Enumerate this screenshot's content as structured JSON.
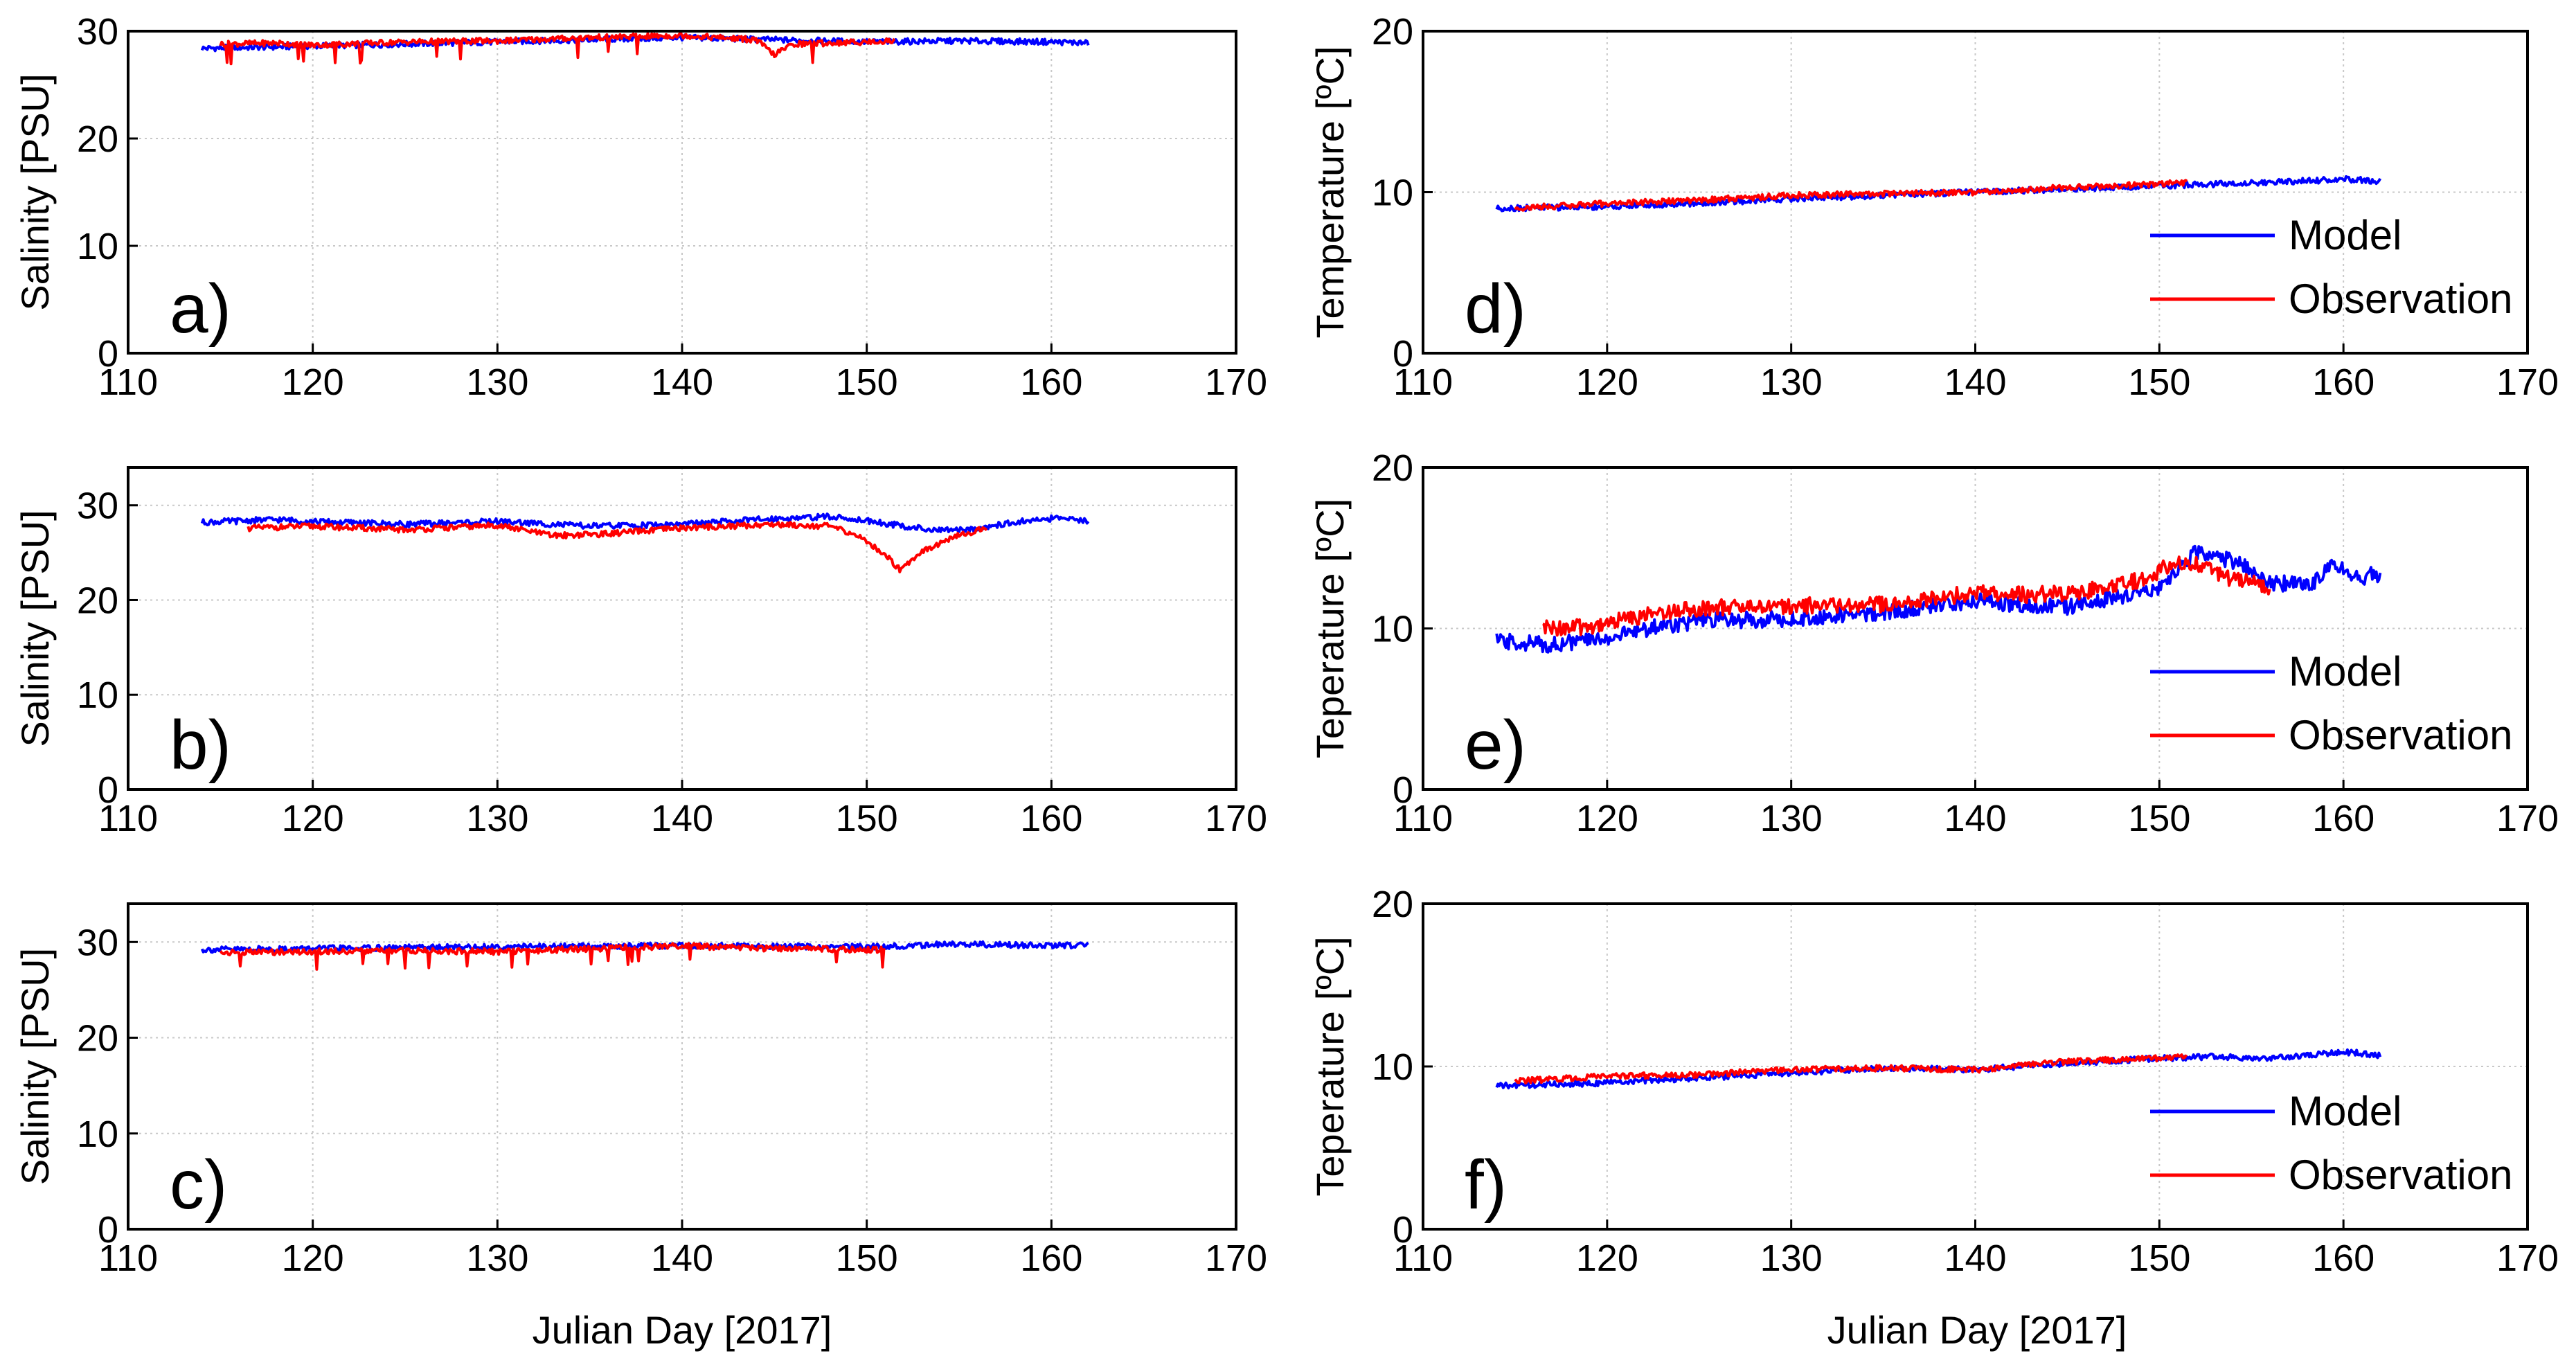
{
  "figure": {
    "x_axis_label": "Julian Day [2017]"
  },
  "chart_data": [
    {
      "id": "a",
      "type": "line",
      "panel_label": "a)",
      "xlabel": "",
      "ylabel": "Salinity [PSU]",
      "xlim": [
        110,
        170
      ],
      "ylim": [
        0,
        30
      ],
      "xticks": [
        110,
        120,
        130,
        140,
        150,
        160,
        170
      ],
      "yticks": [
        0,
        10,
        20,
        30
      ],
      "grid": true,
      "legend": null,
      "series": [
        {
          "name": "Model",
          "color": "#0000ff",
          "x": [
            114,
            120,
            130,
            140,
            145,
            150,
            155,
            160,
            162
          ],
          "values": [
            28.4,
            28.6,
            29.0,
            29.4,
            29.2,
            29.0,
            29.1,
            29.0,
            28.9
          ]
        },
        {
          "name": "Observation",
          "color": "#ff0000",
          "x": [
            115,
            118,
            120,
            125,
            130,
            135,
            140,
            144,
            145,
            146,
            150,
            151.5
          ],
          "values": [
            28.8,
            28.9,
            28.7,
            29.0,
            29.1,
            29.4,
            29.6,
            29.2,
            27.8,
            28.8,
            29.0,
            29.1
          ]
        }
      ]
    },
    {
      "id": "b",
      "type": "line",
      "panel_label": "b)",
      "xlabel": "",
      "ylabel": "Salinity [PSU]",
      "xlim": [
        110,
        170
      ],
      "ylim": [
        0,
        34
      ],
      "xticks": [
        110,
        120,
        130,
        140,
        150,
        160,
        170
      ],
      "yticks": [
        0,
        10,
        20,
        30
      ],
      "grid": true,
      "legend": null,
      "series": [
        {
          "name": "Model",
          "color": "#0000ff",
          "x": [
            114,
            118,
            120,
            125,
            130,
            135,
            140,
            145,
            148,
            150,
            152,
            154,
            156,
            158,
            160,
            162
          ],
          "values": [
            28.2,
            28.5,
            28.3,
            28.0,
            28.3,
            27.8,
            28.0,
            28.6,
            28.8,
            28.4,
            27.8,
            27.3,
            27.6,
            28.2,
            28.6,
            28.4
          ]
        },
        {
          "name": "Observation",
          "color": "#ff0000",
          "x": [
            116.5,
            120,
            125,
            130,
            133,
            136,
            140,
            145,
            148,
            149.5,
            151,
            151.8,
            153,
            155,
            156.5
          ],
          "values": [
            27.6,
            27.8,
            27.4,
            27.9,
            26.8,
            27.0,
            27.6,
            28.0,
            27.8,
            26.8,
            24.8,
            23.2,
            25.2,
            26.8,
            27.6
          ]
        }
      ]
    },
    {
      "id": "c",
      "type": "line",
      "panel_label": "c)",
      "xlabel": "Julian Day [2017]",
      "ylabel": "Salinity [PSU]",
      "xlim": [
        110,
        170
      ],
      "ylim": [
        0,
        34
      ],
      "xticks": [
        110,
        120,
        130,
        140,
        150,
        160,
        170
      ],
      "yticks": [
        0,
        10,
        20,
        30
      ],
      "grid": true,
      "legend": null,
      "series": [
        {
          "name": "Model",
          "color": "#0000ff",
          "x": [
            114,
            120,
            130,
            140,
            150,
            155,
            160,
            162
          ],
          "values": [
            29.2,
            29.3,
            29.5,
            29.6,
            29.5,
            29.8,
            29.6,
            29.7
          ]
        },
        {
          "name": "Observation",
          "color": "#ff0000",
          "x": [
            115,
            120,
            125,
            130,
            135,
            140,
            145,
            151
          ],
          "values": [
            28.9,
            29.0,
            29.1,
            29.0,
            29.3,
            29.6,
            29.3,
            29.2
          ]
        }
      ]
    },
    {
      "id": "d",
      "type": "line",
      "panel_label": "d)",
      "xlabel": "",
      "ylabel": "Temperature [ºC]",
      "xlim": [
        110,
        170
      ],
      "ylim": [
        0,
        20
      ],
      "xticks": [
        110,
        120,
        130,
        140,
        150,
        160,
        170
      ],
      "yticks": [
        0,
        10,
        20
      ],
      "grid": true,
      "legend": {
        "position": "right",
        "entries": [
          "Model",
          "Observation"
        ]
      },
      "series": [
        {
          "name": "Model",
          "color": "#0000ff",
          "x": [
            114,
            120,
            125,
            130,
            135,
            140,
            145,
            150,
            153,
            156,
            160,
            162
          ],
          "values": [
            9.0,
            9.1,
            9.3,
            9.6,
            9.8,
            10.0,
            10.2,
            10.4,
            10.5,
            10.6,
            10.8,
            10.7
          ]
        },
        {
          "name": "Observation",
          "color": "#ff0000",
          "x": [
            115,
            120,
            125,
            130,
            135,
            140,
            145,
            150,
            151.5
          ],
          "values": [
            9.0,
            9.3,
            9.5,
            9.8,
            9.9,
            10.0,
            10.3,
            10.5,
            10.6
          ]
        }
      ]
    },
    {
      "id": "e",
      "type": "line",
      "panel_label": "e)",
      "xlabel": "",
      "ylabel": "Teperature [ºC]",
      "xlim": [
        110,
        170
      ],
      "ylim": [
        0,
        20
      ],
      "xticks": [
        110,
        120,
        130,
        140,
        150,
        160,
        170
      ],
      "yticks": [
        0,
        10,
        20
      ],
      "grid": true,
      "legend": {
        "position": "right",
        "entries": [
          "Model",
          "Observation"
        ]
      },
      "series": [
        {
          "name": "Model",
          "color": "#0000ff",
          "x": [
            114,
            117,
            120,
            123,
            126,
            130,
            135,
            140,
            145,
            148,
            150,
            152,
            154,
            156,
            158,
            159.5,
            161,
            162
          ],
          "values": [
            9.2,
            9.0,
            9.4,
            10.2,
            10.5,
            10.6,
            11.0,
            11.7,
            11.3,
            12.0,
            12.6,
            14.8,
            14.2,
            12.9,
            12.6,
            13.9,
            13.2,
            13.4
          ]
        },
        {
          "name": "Observation",
          "color": "#ff0000",
          "x": [
            116.5,
            119,
            121,
            124,
            126,
            130,
            135,
            140,
            143,
            146,
            149,
            151,
            152.5,
            154,
            156
          ],
          "values": [
            10.0,
            10.1,
            10.6,
            11.2,
            11.3,
            11.4,
            11.5,
            12.2,
            12.1,
            12.3,
            13.0,
            14.2,
            13.8,
            13.0,
            12.6
          ]
        }
      ]
    },
    {
      "id": "f",
      "type": "line",
      "panel_label": "f)",
      "xlabel": "Julian Day [2017]",
      "ylabel": "Teperature [ºC]",
      "xlim": [
        110,
        170
      ],
      "ylim": [
        0,
        20
      ],
      "xticks": [
        110,
        120,
        130,
        140,
        150,
        160,
        170
      ],
      "yticks": [
        0,
        10,
        20
      ],
      "grid": true,
      "legend": {
        "position": "right",
        "entries": [
          "Model",
          "Observation"
        ]
      },
      "series": [
        {
          "name": "Model",
          "color": "#0000ff",
          "x": [
            114,
            120,
            125,
            130,
            135,
            140,
            145,
            150,
            153,
            156,
            160,
            162
          ],
          "values": [
            8.8,
            9.0,
            9.3,
            9.6,
            9.9,
            9.8,
            10.2,
            10.5,
            10.6,
            10.5,
            10.9,
            10.7
          ]
        },
        {
          "name": "Observation",
          "color": "#ff0000",
          "x": [
            115,
            120,
            125,
            130,
            135,
            140,
            145,
            150,
            151.5
          ],
          "values": [
            9.1,
            9.4,
            9.5,
            9.8,
            9.9,
            9.8,
            10.3,
            10.5,
            10.6
          ]
        }
      ]
    }
  ]
}
